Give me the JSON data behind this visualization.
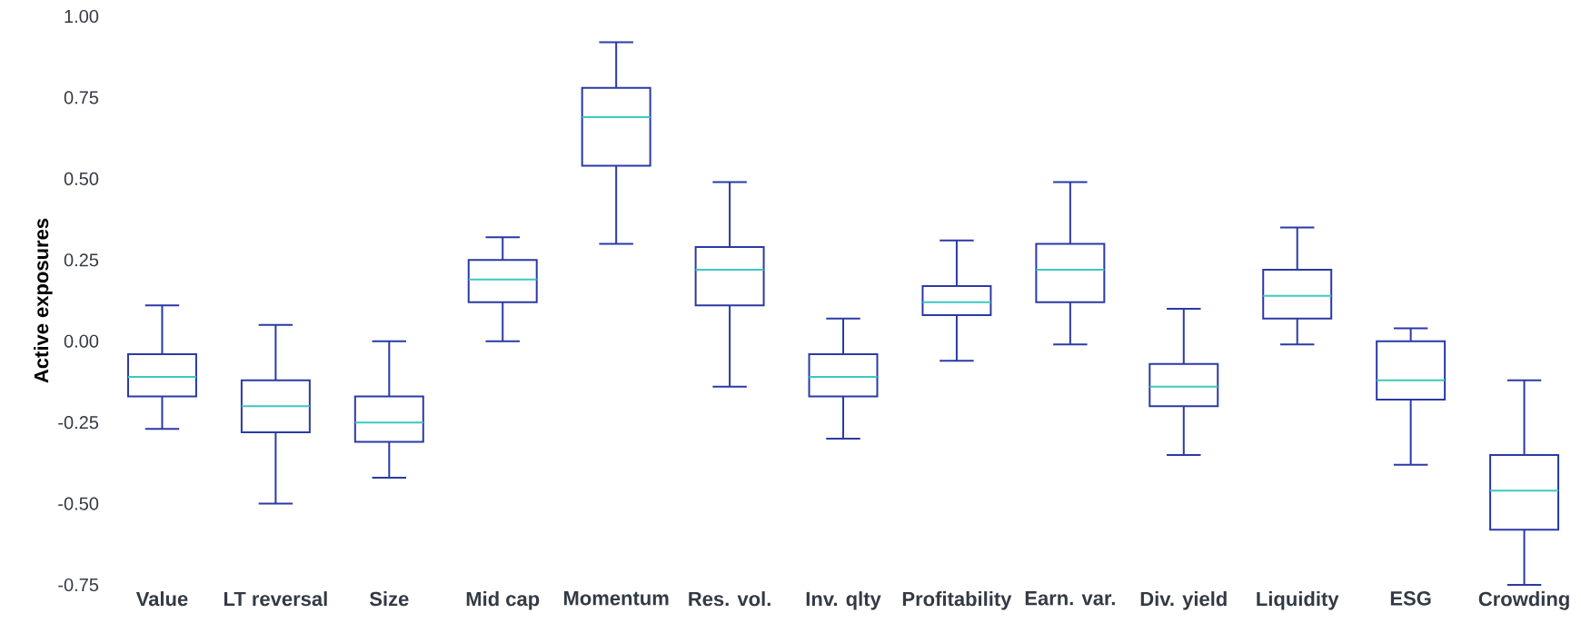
{
  "chart_data": {
    "type": "box",
    "ylabel": "Active exposures",
    "categories": [
      "Value",
      "LT reversal",
      "Size",
      "Mid cap",
      "Momentum",
      "Res. vol.",
      "Inv. qlty",
      "Profitability",
      "Earn. var.",
      "Div. yield",
      "Liquidity",
      "ESG",
      "Crowding"
    ],
    "ylim": [
      -0.75,
      1.0
    ],
    "yticks": [
      {
        "value": -0.75,
        "label": "-0.75"
      },
      {
        "value": -0.5,
        "label": "-0.50"
      },
      {
        "value": -0.25,
        "label": "-0.25"
      },
      {
        "value": 0,
        "label": "0.00"
      },
      {
        "value": 0.25,
        "label": "0.25"
      },
      {
        "value": 0.5,
        "label": "0.50"
      },
      {
        "value": 0.75,
        "label": "0.75"
      },
      {
        "value": 1.0,
        "label": "1.00"
      }
    ],
    "grid": false,
    "series": [
      {
        "color": "#2b3aa5",
        "boxes": [
          {
            "low": -0.27,
            "q1": -0.17,
            "median": -0.11,
            "q3": -0.04,
            "high": 0.11
          },
          {
            "low": -0.5,
            "q1": -0.28,
            "median": -0.2,
            "q3": -0.12,
            "high": 0.05
          },
          {
            "low": -0.42,
            "q1": -0.31,
            "median": -0.25,
            "q3": -0.17,
            "high": 0.0
          },
          {
            "low": 0.0,
            "q1": 0.12,
            "median": 0.19,
            "q3": 0.25,
            "high": 0.32
          },
          {
            "low": 0.3,
            "q1": 0.54,
            "median": 0.69,
            "q3": 0.78,
            "high": 0.92
          },
          {
            "low": -0.14,
            "q1": 0.11,
            "median": 0.22,
            "q3": 0.29,
            "high": 0.49
          },
          {
            "low": -0.3,
            "q1": -0.17,
            "median": -0.11,
            "q3": -0.04,
            "high": 0.07
          },
          {
            "low": -0.06,
            "q1": 0.08,
            "median": 0.12,
            "q3": 0.17,
            "high": 0.31
          },
          {
            "low": -0.01,
            "q1": 0.12,
            "median": 0.22,
            "q3": 0.3,
            "high": 0.49
          },
          {
            "low": -0.35,
            "q1": -0.2,
            "median": -0.14,
            "q3": -0.07,
            "high": 0.1
          },
          {
            "low": -0.01,
            "q1": 0.07,
            "median": 0.14,
            "q3": 0.22,
            "high": 0.35
          },
          {
            "low": -0.38,
            "q1": -0.18,
            "median": -0.12,
            "q3": 0.0,
            "high": 0.04
          },
          {
            "low": -0.75,
            "q1": -0.58,
            "median": -0.46,
            "q3": -0.35,
            "high": -0.12
          }
        ]
      }
    ]
  }
}
